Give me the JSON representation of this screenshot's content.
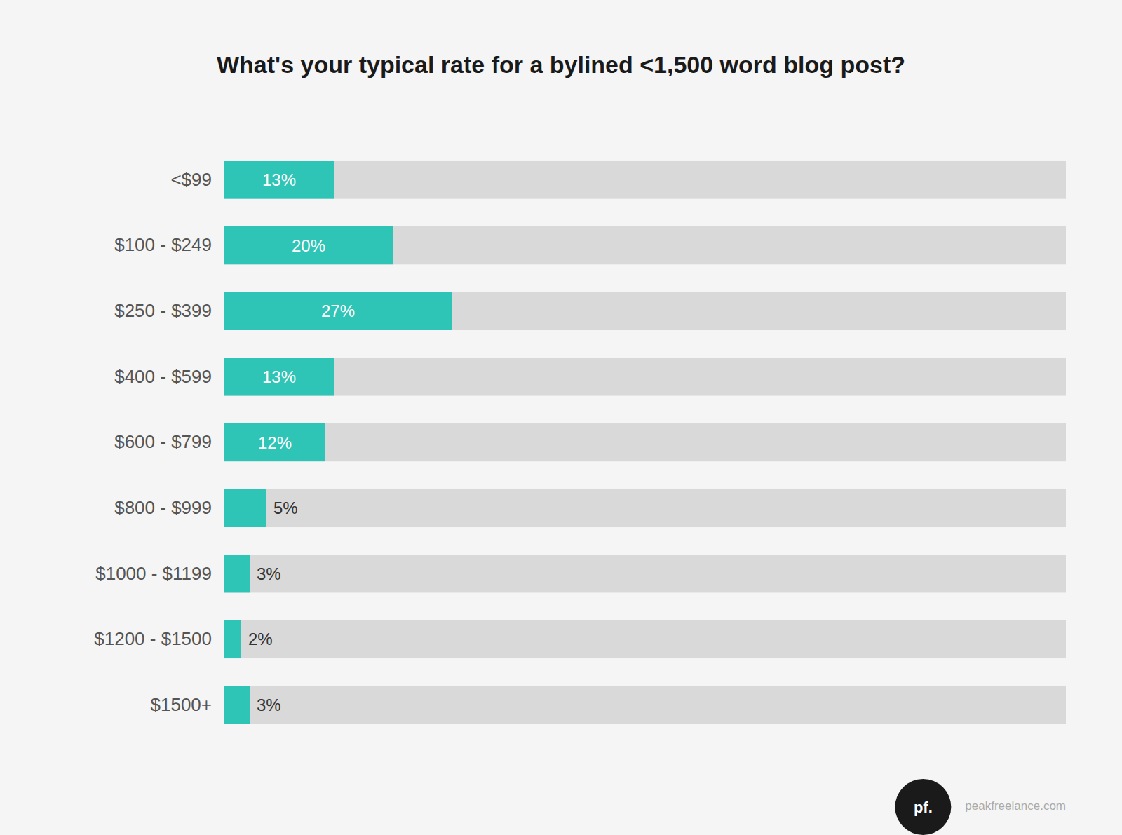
{
  "chart_data": {
    "type": "bar",
    "orientation": "horizontal",
    "title": "What's your typical rate for a bylined <1,500 word blog post?",
    "categories": [
      "<$99",
      "$100 - $249",
      "$250 - $399",
      "$400 - $599",
      "$600 - $799",
      "$800 - $999",
      "$1000 - $1199",
      "$1200 - $1500",
      "$1500+"
    ],
    "values": [
      13,
      20,
      27,
      13,
      12,
      5,
      3,
      2,
      3
    ],
    "value_labels": [
      "13%",
      "20%",
      "27%",
      "13%",
      "12%",
      "5%",
      "3%",
      "2%",
      "3%"
    ],
    "color": "#2ec4b6",
    "xlim": [
      0,
      100
    ],
    "grid": false,
    "data_labels": true,
    "tick_labels": "y",
    "annotations": [
      "pf.",
      "peakfreelance.com"
    ]
  }
}
